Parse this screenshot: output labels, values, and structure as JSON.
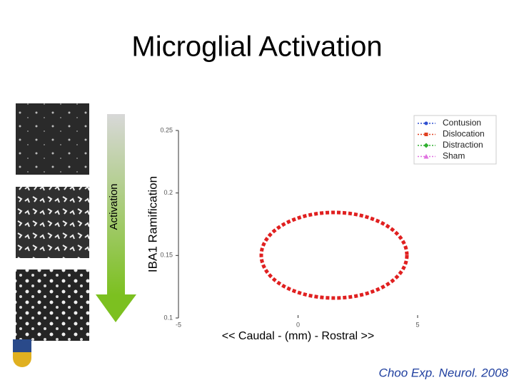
{
  "title": "Microglial Activation",
  "side_label": "Activation",
  "citation": "Choo Exp. Neurol. 2008",
  "chart_data": {
    "type": "line",
    "ylabel": "IBA1 Ramification",
    "xlabel": "<< Caudal - (mm) - Rostral >>",
    "xlim": [
      -5,
      5
    ],
    "xticks": [
      -5,
      0,
      5
    ],
    "ylim": [
      0.1,
      0.25
    ],
    "yticks": [
      0.1,
      0.15,
      0.2,
      0.25
    ],
    "legend": "upper right",
    "series": [
      {
        "name": "Contusion",
        "color": "#3050d0",
        "marker": "o"
      },
      {
        "name": "Dislocation",
        "color": "#e04020",
        "marker": "s"
      },
      {
        "name": "Distraction",
        "color": "#30b030",
        "marker": "d"
      },
      {
        "name": "Sham",
        "color": "#e070e0",
        "marker": "^"
      }
    ]
  }
}
